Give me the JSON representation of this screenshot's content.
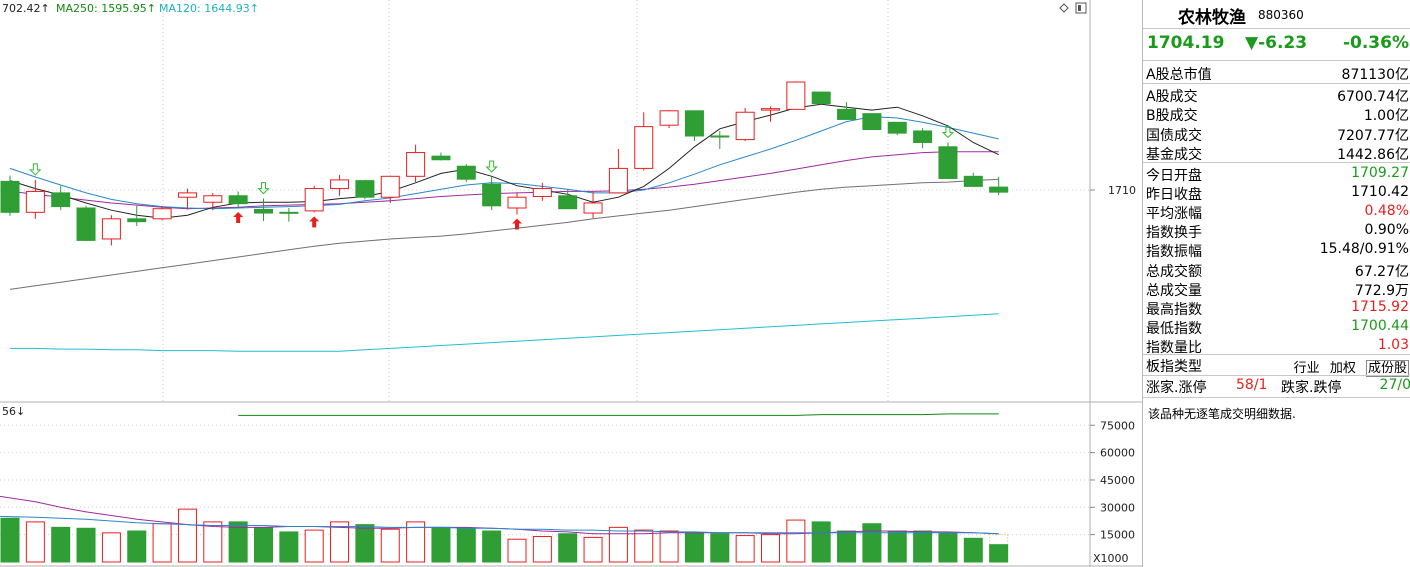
{
  "legend": {
    "ma_partial": "702.42↑",
    "ma250": "MA250: 1595.95↑",
    "ma120": "MA120: 1644.93↑",
    "ma_colors": {
      "ma5": "#222222",
      "ma10": "#2a88c8",
      "ma20": "#a02aa0",
      "ma60": "#707070",
      "ma120": "#20c0d0",
      "ma250": "#118811"
    }
  },
  "volume_legend": "56↓",
  "volume_unit": "X1000",
  "chart_data": {
    "type": "candlestick",
    "price_tick_labels": [
      "1710"
    ],
    "price_tick_values": [
      1710
    ],
    "volume_tick_labels": [
      "75000",
      "60000",
      "45000",
      "30000",
      "15000"
    ],
    "volume_tick_values": [
      75000,
      60000,
      45000,
      30000,
      15000
    ],
    "candles": [
      {
        "open": 1711.2,
        "high": 1712.0,
        "low": 1706.4,
        "close": 1706.9
      },
      {
        "open": 1706.9,
        "high": 1711.4,
        "low": 1706.0,
        "close": 1709.8
      },
      {
        "open": 1709.6,
        "high": 1710.6,
        "low": 1707.2,
        "close": 1707.7
      },
      {
        "open": 1707.5,
        "high": 1707.8,
        "low": 1702.9,
        "close": 1703.0
      },
      {
        "open": 1703.2,
        "high": 1706.5,
        "low": 1702.3,
        "close": 1706.0
      },
      {
        "open": 1706.0,
        "high": 1707.8,
        "low": 1705.0,
        "close": 1705.6
      },
      {
        "open": 1706.0,
        "high": 1707.8,
        "low": 1705.8,
        "close": 1707.4
      },
      {
        "open": 1709.0,
        "high": 1710.2,
        "low": 1707.3,
        "close": 1709.6
      },
      {
        "open": 1708.3,
        "high": 1709.6,
        "low": 1707.2,
        "close": 1709.2
      },
      {
        "open": 1709.2,
        "high": 1709.8,
        "low": 1707.5,
        "close": 1708.1
      },
      {
        "open": 1707.3,
        "high": 1708.8,
        "low": 1705.7,
        "close": 1706.8
      },
      {
        "open": 1706.9,
        "high": 1707.5,
        "low": 1705.6,
        "close": 1706.8
      },
      {
        "open": 1707.1,
        "high": 1710.6,
        "low": 1706.9,
        "close": 1710.2
      },
      {
        "open": 1710.2,
        "high": 1712.1,
        "low": 1709.2,
        "close": 1711.4
      },
      {
        "open": 1711.3,
        "high": 1711.4,
        "low": 1708.7,
        "close": 1709.0
      },
      {
        "open": 1709.0,
        "high": 1712.0,
        "low": 1708.2,
        "close": 1711.9
      },
      {
        "open": 1711.9,
        "high": 1716.3,
        "low": 1711.1,
        "close": 1715.2
      },
      {
        "open": 1714.7,
        "high": 1715.2,
        "low": 1714.1,
        "close": 1714.2
      },
      {
        "open": 1713.3,
        "high": 1713.6,
        "low": 1711.1,
        "close": 1711.5
      },
      {
        "open": 1710.8,
        "high": 1711.8,
        "low": 1707.2,
        "close": 1707.8
      },
      {
        "open": 1707.5,
        "high": 1709.6,
        "low": 1706.6,
        "close": 1709.0
      },
      {
        "open": 1709.1,
        "high": 1711.0,
        "low": 1708.5,
        "close": 1710.2
      },
      {
        "open": 1709.2,
        "high": 1710.1,
        "low": 1707.4,
        "close": 1707.4
      },
      {
        "open": 1706.8,
        "high": 1709.7,
        "low": 1706.1,
        "close": 1708.2
      },
      {
        "open": 1709.6,
        "high": 1715.7,
        "low": 1709.6,
        "close": 1713.0
      },
      {
        "open": 1713.0,
        "high": 1720.8,
        "low": 1712.7,
        "close": 1718.8
      },
      {
        "open": 1719.0,
        "high": 1721.1,
        "low": 1718.6,
        "close": 1721.0
      },
      {
        "open": 1721.0,
        "high": 1721.0,
        "low": 1716.8,
        "close": 1717.5
      },
      {
        "open": 1717.5,
        "high": 1718.2,
        "low": 1715.7,
        "close": 1717.4
      },
      {
        "open": 1717.0,
        "high": 1721.4,
        "low": 1716.8,
        "close": 1720.8
      },
      {
        "open": 1721.1,
        "high": 1721.6,
        "low": 1719.5,
        "close": 1721.3
      },
      {
        "open": 1721.2,
        "high": 1725.1,
        "low": 1721.2,
        "close": 1725.0
      },
      {
        "open": 1723.6,
        "high": 1723.6,
        "low": 1721.8,
        "close": 1722.0
      },
      {
        "open": 1721.2,
        "high": 1722.2,
        "low": 1719.9,
        "close": 1719.8
      },
      {
        "open": 1720.6,
        "high": 1720.6,
        "low": 1718.4,
        "close": 1718.4
      },
      {
        "open": 1719.4,
        "high": 1719.4,
        "low": 1717.6,
        "close": 1717.9
      },
      {
        "open": 1718.2,
        "high": 1718.6,
        "low": 1715.8,
        "close": 1716.6
      },
      {
        "open": 1716.0,
        "high": 1716.6,
        "low": 1711.6,
        "close": 1711.6
      },
      {
        "open": 1711.9,
        "high": 1712.4,
        "low": 1710.4,
        "close": 1710.5
      },
      {
        "open": 1710.4,
        "high": 1711.8,
        "low": 1709.3,
        "close": 1709.7
      }
    ],
    "ma5": [
      1711.3,
      1710.2,
      1709.3,
      1708.2,
      1707.2,
      1706.5,
      1706.1,
      1706.5,
      1707.6,
      1708.2,
      1708.3,
      1708.3,
      1708.4,
      1708.8,
      1709.1,
      1709.8,
      1711.0,
      1712.3,
      1712.9,
      1711.9,
      1710.6,
      1710.0,
      1709.4,
      1708.3,
      1709.0,
      1710.5,
      1713.0,
      1716.0,
      1718.5,
      1719.5,
      1720.4,
      1721.4,
      1721.9,
      1721.5,
      1721.1,
      1721.5,
      1720.3,
      1718.9,
      1716.6,
      1714.9
    ],
    "ma10": [
      1713.0,
      1711.8,
      1710.7,
      1709.6,
      1708.7,
      1708.1,
      1707.7,
      1707.5,
      1707.4,
      1707.5,
      1707.6,
      1707.7,
      1707.8,
      1708.0,
      1708.5,
      1708.9,
      1709.5,
      1710.1,
      1710.7,
      1711.0,
      1710.9,
      1710.5,
      1710.1,
      1709.6,
      1709.6,
      1710.0,
      1711.0,
      1712.2,
      1713.5,
      1714.6,
      1715.7,
      1716.9,
      1718.2,
      1719.5,
      1720.2,
      1720.0,
      1719.4,
      1718.7,
      1717.9,
      1717.1
    ],
    "ma20": [
      1709.8,
      1709.4,
      1709.0,
      1708.6,
      1708.2,
      1707.9,
      1707.6,
      1707.4,
      1707.5,
      1707.6,
      1707.8,
      1707.9,
      1708.0,
      1708.1,
      1708.3,
      1708.5,
      1708.8,
      1709.1,
      1709.3,
      1709.5,
      1709.6,
      1709.7,
      1709.8,
      1709.8,
      1709.9,
      1710.1,
      1710.4,
      1710.8,
      1711.3,
      1711.8,
      1712.3,
      1712.9,
      1713.5,
      1714.1,
      1714.6,
      1714.9,
      1715.2,
      1715.3,
      1715.3,
      1715.3
    ],
    "ma60": [
      1696.2,
      1696.7,
      1697.2,
      1697.7,
      1698.2,
      1698.7,
      1699.2,
      1699.7,
      1700.2,
      1700.7,
      1701.2,
      1701.7,
      1702.2,
      1702.6,
      1702.9,
      1703.2,
      1703.4,
      1703.6,
      1703.9,
      1704.3,
      1704.7,
      1705.1,
      1705.5,
      1706.0,
      1706.4,
      1706.8,
      1707.2,
      1707.7,
      1708.2,
      1708.7,
      1709.2,
      1709.7,
      1710.1,
      1710.4,
      1710.6,
      1710.8,
      1711.0,
      1711.1,
      1711.3,
      1711.5
    ],
    "ma120": [
      1688.0,
      1688.0,
      1687.9,
      1687.9,
      1687.8,
      1687.8,
      1687.7,
      1687.7,
      1687.7,
      1687.6,
      1687.6,
      1687.6,
      1687.6,
      1687.6,
      1687.8,
      1688.0,
      1688.2,
      1688.4,
      1688.6,
      1688.8,
      1689.0,
      1689.2,
      1689.4,
      1689.6,
      1689.8,
      1690.0,
      1690.2,
      1690.4,
      1690.6,
      1690.8,
      1691.0,
      1691.2,
      1691.4,
      1691.6,
      1691.8,
      1692.0,
      1692.2,
      1692.4,
      1692.6,
      1692.8
    ],
    "ma250_start_index": 9,
    "ma250": [
      1678.7,
      1678.7,
      1678.7,
      1678.7,
      1678.7,
      1678.7,
      1678.7,
      1678.7,
      1678.7,
      1678.7,
      1678.7,
      1678.7,
      1678.7,
      1678.7,
      1678.7,
      1678.7,
      1678.7,
      1678.7,
      1678.7,
      1678.7,
      1678.7,
      1678.7,
      1678.7,
      1678.8,
      1678.8,
      1678.8,
      1678.8,
      1678.8,
      1678.9,
      1678.9,
      1678.9
    ],
    "volume": [
      24000,
      22000,
      19000,
      18500,
      16000,
      17000,
      21000,
      29000,
      22000,
      22000,
      19000,
      16500,
      17500,
      22000,
      20500,
      18000,
      22000,
      19000,
      18500,
      17000,
      12500,
      14000,
      15500,
      13500,
      19000,
      17500,
      17000,
      16000,
      15500,
      14500,
      15000,
      23000,
      22000,
      17000,
      21000,
      17000,
      17000,
      16000,
      13000,
      9500
    ],
    "vol_ma5": [
      36000,
      33000,
      30000,
      27500,
      25500,
      23500,
      22000,
      20500,
      19500,
      19000,
      19000,
      19500,
      19500,
      19000,
      18500,
      18500,
      19000,
      19000,
      19000,
      18500,
      18000,
      17000,
      16500,
      15500,
      15500,
      15500,
      16000,
      16000,
      16000,
      16000,
      15500,
      15500,
      16000,
      16500,
      17000,
      17000,
      16500,
      16500,
      16000,
      15500
    ],
    "vol_ma10": [
      25000,
      24500,
      24000,
      23500,
      22500,
      21500,
      21000,
      20500,
      20000,
      20000,
      20000,
      19500,
      19500,
      19500,
      19500,
      19000,
      19000,
      19000,
      18500,
      18500,
      18000,
      18000,
      17500,
      17500,
      17000,
      17000,
      16500,
      16500,
      16000,
      16000,
      16000,
      16000,
      16000,
      16000,
      16000,
      16000,
      16000,
      16000,
      16000,
      15500
    ],
    "up_arrows": [
      9,
      12,
      20
    ],
    "down_arrows": [
      1,
      10,
      19,
      37
    ]
  },
  "panel": {
    "name": "农林牧渔",
    "code": "880360",
    "price": "1704.19",
    "change": "▼-6.23",
    "change_pct": "-0.36%",
    "market_cap": {
      "label": "A股总市值",
      "value": "871130亿"
    },
    "turnover": [
      {
        "label": "A股成交",
        "value": "6700.74亿"
      },
      {
        "label": "B股成交",
        "value": "1.00亿"
      },
      {
        "label": "国债成交",
        "value": "7207.77亿"
      },
      {
        "label": "基金成交",
        "value": "1442.86亿"
      }
    ],
    "stats": [
      {
        "label": "今日开盘",
        "value": "1709.27",
        "color": "green"
      },
      {
        "label": "昨日收盘",
        "value": "1710.42",
        "color": "black"
      },
      {
        "label": "平均涨幅",
        "value": "0.48%",
        "color": "red"
      },
      {
        "label": "指数换手",
        "value": "0.90%",
        "color": "black"
      },
      {
        "label": "指数振幅",
        "value": "15.48/0.91%",
        "color": "black"
      },
      {
        "label": "总成交额",
        "value": "67.27亿",
        "color": "black"
      },
      {
        "label": "总成交量",
        "value": "772.9万",
        "color": "black"
      },
      {
        "label": "最高指数",
        "value": "1715.92",
        "color": "red"
      },
      {
        "label": "最低指数",
        "value": "1700.44",
        "color": "green"
      },
      {
        "label": "指数量比",
        "value": "1.03",
        "color": "red"
      }
    ],
    "type_label": "板指类型",
    "type_tabs": [
      "行业",
      "加权",
      "成份股"
    ],
    "breadth": {
      "up_label": "涨家.涨停",
      "up_value": "58/1",
      "down_label": "跌家.跌停",
      "down_value": "27/0"
    },
    "note": "该品种无逐笔成交明细数据."
  }
}
